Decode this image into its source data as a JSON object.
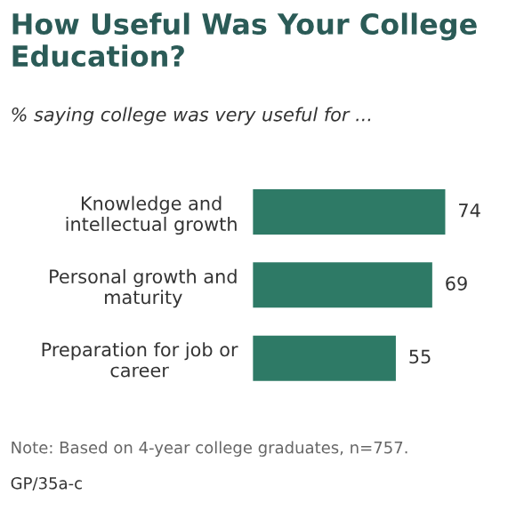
{
  "chart_data": {
    "type": "bar",
    "orientation": "horizontal",
    "title": "How Useful Was Your College Education?",
    "subtitle": "% saying college was very useful for ...",
    "categories": [
      "Knowledge and intellectual growth",
      "Personal growth and maturity",
      "Preparation for job or career"
    ],
    "values": [
      74,
      69,
      55
    ],
    "color": "#2e7a66",
    "data_labels": true,
    "grid": false,
    "legend": false,
    "annotations": [
      "Note: Based on 4-year college graduates, n=757.",
      "GP/35a-c"
    ]
  }
}
